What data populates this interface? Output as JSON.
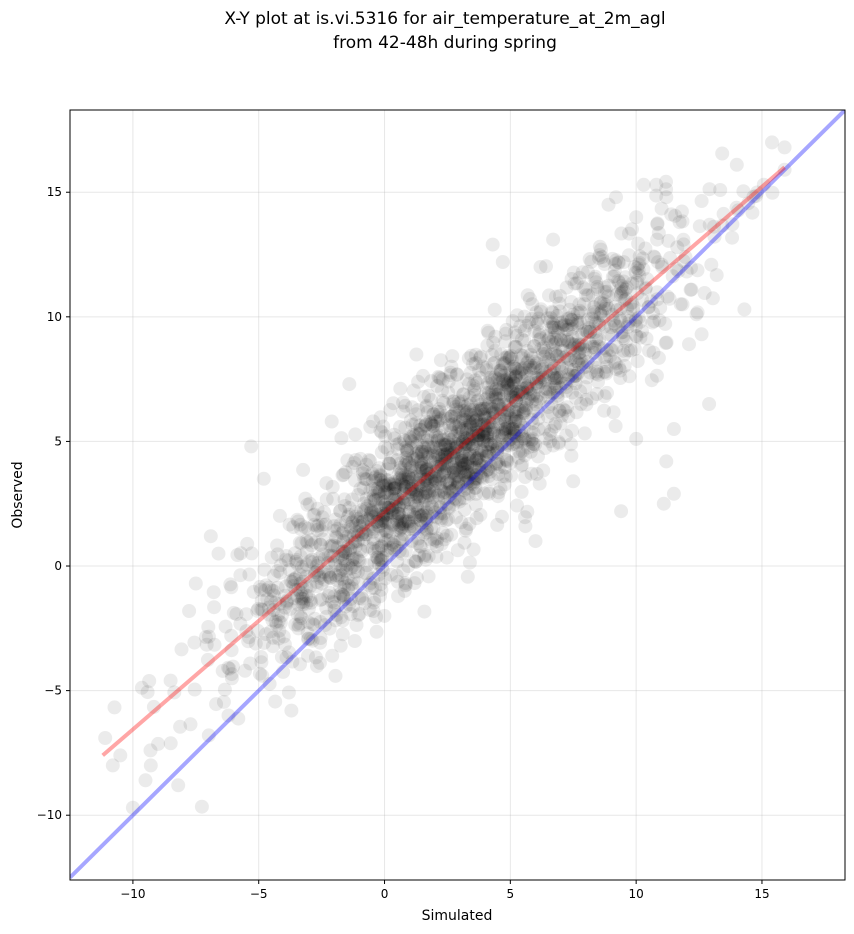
{
  "chart_data": {
    "type": "scatter",
    "title_line1": "X-Y plot at is.vi.5316 for air_temperature_at_2m_agl",
    "title_line2": "from 42-48h during spring",
    "xlabel": "Simulated",
    "ylabel": "Observed",
    "xlim": [
      -12.5,
      18.3
    ],
    "ylim": [
      -12.6,
      18.3
    ],
    "xticks": [
      -10,
      -5,
      0,
      5,
      10,
      15
    ],
    "yticks": [
      -10,
      -5,
      0,
      5,
      10,
      15
    ],
    "xtick_labels": [
      "−10",
      "−5",
      "0",
      "5",
      "10",
      "15"
    ],
    "ytick_labels": [
      "−10",
      "−5",
      "0",
      "5",
      "10",
      "15"
    ],
    "grid": true,
    "point_color": "#000000",
    "point_alpha": 0.08,
    "fit_line": {
      "color": "#ff0000",
      "x": [
        -11.2,
        15.9
      ],
      "y": [
        -7.6,
        16.0
      ]
    },
    "identity_line": {
      "color": "#0000ff",
      "x": [
        -12.5,
        18.3
      ],
      "y": [
        -12.5,
        18.3
      ]
    },
    "point_model": {
      "count": 2200,
      "x_mean": 3.0,
      "x_std": 4.2,
      "slope": 0.87,
      "intercept": 2.1,
      "noise_std": 1.6
    },
    "notable_points": [
      [
        -11.1,
        -6.9
      ],
      [
        -10.8,
        -8.0
      ],
      [
        -10.0,
        -9.7
      ],
      [
        -9.5,
        -8.6
      ],
      [
        -8.2,
        -8.8
      ],
      [
        -8.5,
        -4.6
      ],
      [
        -5.3,
        4.8
      ],
      [
        -4.8,
        3.5
      ],
      [
        -3.7,
        -5.8
      ],
      [
        -2.1,
        5.8
      ],
      [
        -1.4,
        7.3
      ],
      [
        5.6,
        1.6
      ],
      [
        6.0,
        1.0
      ],
      [
        9.4,
        2.2
      ],
      [
        11.1,
        2.5
      ],
      [
        11.5,
        2.9
      ],
      [
        11.2,
        4.2
      ],
      [
        12.9,
        6.5
      ],
      [
        14.3,
        10.3
      ],
      [
        14.0,
        16.1
      ],
      [
        15.4,
        17.0
      ],
      [
        15.9,
        16.8
      ],
      [
        15.9,
        15.9
      ],
      [
        9.2,
        14.8
      ],
      [
        10.3,
        15.3
      ],
      [
        10.8,
        15.3
      ],
      [
        11.2,
        14.8
      ],
      [
        6.7,
        13.1
      ],
      [
        4.3,
        12.9
      ],
      [
        4.7,
        12.2
      ],
      [
        6.2,
        12.0
      ],
      [
        8.9,
        14.5
      ],
      [
        10.0,
        14.0
      ],
      [
        12.1,
        8.9
      ],
      [
        12.6,
        9.3
      ],
      [
        12.4,
        10.1
      ],
      [
        11.5,
        5.5
      ],
      [
        10.0,
        5.1
      ],
      [
        7.5,
        3.4
      ],
      [
        0.8,
        -1.0
      ],
      [
        -6.2,
        -6.0
      ],
      [
        -10.5,
        -7.6
      ],
      [
        -9.3,
        -7.4
      ],
      [
        -7.5,
        -0.7
      ],
      [
        -6.6,
        0.5
      ]
    ]
  }
}
